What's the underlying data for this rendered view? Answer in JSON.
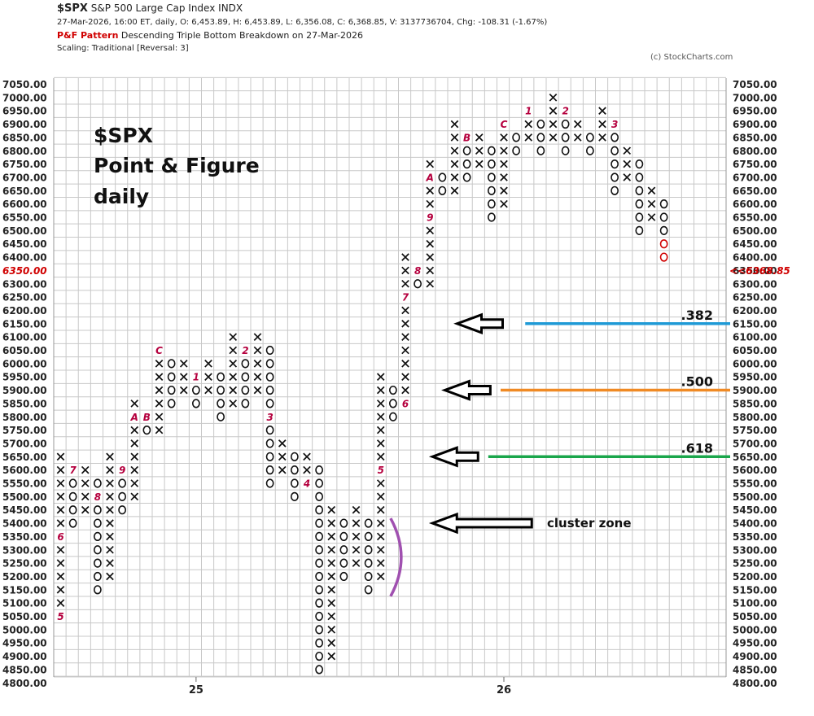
{
  "header": {
    "symbol": "$SPX",
    "name": "S&P 500 Large Cap Index",
    "exchange": "INDX",
    "quote_line": "27-Mar-2026, 16:00 ET, daily, O: 6,453.89, H: 6,453.89, L: 6,356.08, C: 6,368.85, V: 3137736704, Chg: -108.31 (-1.67%)",
    "pattern_label": "P&F Pattern",
    "pattern_text": "Descending Triple Bottom Breakdown on 27-Mar-2026",
    "scaling": "Scaling: Traditional [Reversal: 3]",
    "copyright": "(c) StockCharts.com"
  },
  "colors": {
    "grid": "#c8c8c8",
    "x_mark": "#111111",
    "o_mark": "#111111",
    "month_label": "#b5003e",
    "last_o": "#d00000",
    "fib_382": "#1e9ad6",
    "fib_500": "#f08a24",
    "fib_618": "#1aa64b",
    "cluster_bracket": "#a050b0"
  },
  "chart_data": {
    "type": "point-and-figure",
    "box_size": 50,
    "reversal": 3,
    "ylim": [
      4800,
      7050
    ],
    "y_ticks": [
      7050,
      7000,
      6950,
      6900,
      6850,
      6800,
      6750,
      6700,
      6650,
      6600,
      6550,
      6500,
      6450,
      6400,
      6350,
      6300,
      6250,
      6200,
      6150,
      6100,
      6050,
      6000,
      5950,
      5900,
      5850,
      5800,
      5750,
      5700,
      5650,
      5600,
      5550,
      5500,
      5450,
      5400,
      5350,
      5300,
      5250,
      5200,
      5150,
      5100,
      5050,
      5000,
      4950,
      4900,
      4850,
      4800
    ],
    "y_tick_labels": [
      "7050.00",
      "7000.00",
      "6950.00",
      "6900.00",
      "6850.00",
      "6800.00",
      "6750.00",
      "6700.00",
      "6650.00",
      "6600.00",
      "6550.00",
      "6500.00",
      "6450.00",
      "6400.00",
      "6350.00",
      "6300.00",
      "6250.00",
      "6200.00",
      "6150.00",
      "6100.00",
      "6050.00",
      "6000.00",
      "5950.00",
      "5900.00",
      "5850.00",
      "5800.00",
      "5750.00",
      "5700.00",
      "5650.00",
      "5600.00",
      "5550.00",
      "5500.00",
      "5450.00",
      "5400.00",
      "5350.00",
      "5300.00",
      "5250.00",
      "5200.00",
      "5150.00",
      "5100.00",
      "5050.00",
      "5000.00",
      "4950.00",
      "4900.00",
      "4850.00",
      "4800.00"
    ],
    "left_highlight_label": "6350.00",
    "last_price_label": "<<6368.85",
    "last_price": 6368.85,
    "year_labels": [
      {
        "col": 11,
        "label": "25"
      },
      {
        "col": 36,
        "label": "26"
      }
    ],
    "columns": [
      {
        "type": "X",
        "low": 5050,
        "high": 5650,
        "labels": {
          "5050": "5",
          "5350": "6"
        }
      },
      {
        "type": "O",
        "low": 5400,
        "high": 5600,
        "labels": {
          "5600": "7"
        }
      },
      {
        "type": "X",
        "low": 5450,
        "high": 5600
      },
      {
        "type": "O",
        "low": 5150,
        "high": 5550,
        "labels": {
          "5500": "8"
        }
      },
      {
        "type": "X",
        "low": 5200,
        "high": 5650
      },
      {
        "type": "O",
        "low": 5450,
        "high": 5600,
        "labels": {
          "5600": "9"
        }
      },
      {
        "type": "X",
        "low": 5500,
        "high": 5850,
        "labels": {
          "5800": "A"
        }
      },
      {
        "type": "O",
        "low": 5750,
        "high": 5800,
        "labels": {
          "5800": "B"
        }
      },
      {
        "type": "X",
        "low": 5750,
        "high": 6050,
        "labels": {
          "6050": "C"
        }
      },
      {
        "type": "O",
        "low": 5850,
        "high": 6000
      },
      {
        "type": "X",
        "low": 5900,
        "high": 6000
      },
      {
        "type": "O",
        "low": 5850,
        "high": 5950,
        "labels": {
          "5950": "1"
        }
      },
      {
        "type": "X",
        "low": 5900,
        "high": 6000
      },
      {
        "type": "O",
        "low": 5800,
        "high": 5950
      },
      {
        "type": "X",
        "low": 5850,
        "high": 6100
      },
      {
        "type": "O",
        "low": 5850,
        "high": 6050,
        "labels": {
          "6050": "2"
        }
      },
      {
        "type": "X",
        "low": 5900,
        "high": 6100
      },
      {
        "type": "O",
        "low": 5550,
        "high": 6050,
        "labels": {
          "5800": "3"
        }
      },
      {
        "type": "X",
        "low": 5600,
        "high": 5700
      },
      {
        "type": "O",
        "low": 5500,
        "high": 5650
      },
      {
        "type": "X",
        "low": 5550,
        "high": 5650,
        "labels": {
          "5550": "4"
        }
      },
      {
        "type": "O",
        "low": 4850,
        "high": 5600
      },
      {
        "type": "X",
        "low": 4900,
        "high": 5450
      },
      {
        "type": "O",
        "low": 5200,
        "high": 5400
      },
      {
        "type": "X",
        "low": 5250,
        "high": 5450
      },
      {
        "type": "O",
        "low": 5150,
        "high": 5400
      },
      {
        "type": "X",
        "low": 5200,
        "high": 5950,
        "labels": {
          "5600": "5"
        }
      },
      {
        "type": "O",
        "low": 5800,
        "high": 5900
      },
      {
        "type": "X",
        "low": 5850,
        "high": 6400,
        "labels": {
          "5850": "6",
          "6250": "7"
        }
      },
      {
        "type": "O",
        "low": 6300,
        "high": 6350,
        "labels": {
          "6350": "8"
        }
      },
      {
        "type": "X",
        "low": 6300,
        "high": 6750,
        "labels": {
          "6550": "9",
          "6700": "A"
        }
      },
      {
        "type": "O",
        "low": 6650,
        "high": 6700
      },
      {
        "type": "X",
        "low": 6650,
        "high": 6900
      },
      {
        "type": "O",
        "low": 6700,
        "high": 6850,
        "labels": {
          "6850": "B"
        }
      },
      {
        "type": "X",
        "low": 6750,
        "high": 6850
      },
      {
        "type": "O",
        "low": 6550,
        "high": 6800
      },
      {
        "type": "X",
        "low": 6600,
        "high": 6900,
        "labels": {
          "6900": "C"
        }
      },
      {
        "type": "O",
        "low": 6800,
        "high": 6850
      },
      {
        "type": "X",
        "low": 6850,
        "high": 6950,
        "labels": {
          "6950": "1"
        }
      },
      {
        "type": "O",
        "low": 6800,
        "high": 6900
      },
      {
        "type": "X",
        "low": 6850,
        "high": 7000
      },
      {
        "type": "O",
        "low": 6800,
        "high": 6950,
        "labels": {
          "6950": "2"
        }
      },
      {
        "type": "X",
        "low": 6850,
        "high": 6900
      },
      {
        "type": "O",
        "low": 6800,
        "high": 6850
      },
      {
        "type": "X",
        "low": 6850,
        "high": 6950
      },
      {
        "type": "O",
        "low": 6650,
        "high": 6900,
        "labels": {
          "6900": "3"
        }
      },
      {
        "type": "X",
        "low": 6700,
        "high": 6800
      },
      {
        "type": "O",
        "low": 6500,
        "high": 6750
      },
      {
        "type": "X",
        "low": 6550,
        "high": 6650
      },
      {
        "type": "O",
        "low": 6400,
        "high": 6600,
        "red_from": 6450
      }
    ],
    "annotations": {
      "title_lines": [
        "$SPX",
        "Point & Figure",
        "daily"
      ],
      "fib_lines": [
        {
          "label": ".382",
          "price": 6150,
          "start_col": 38
        },
        {
          "label": ".500",
          "price": 5900,
          "start_col": 36
        },
        {
          "label": ".618",
          "price": 5650,
          "start_col": 35
        }
      ],
      "arrows": [
        {
          "price": 6150,
          "tip_col": 32
        },
        {
          "price": 5900,
          "tip_col": 31
        },
        {
          "price": 5650,
          "tip_col": 30
        },
        {
          "price": 5400,
          "tip_col": 30,
          "long": true
        }
      ],
      "cluster_label": "cluster zone",
      "cluster_range": [
        5150,
        5400
      ]
    }
  }
}
